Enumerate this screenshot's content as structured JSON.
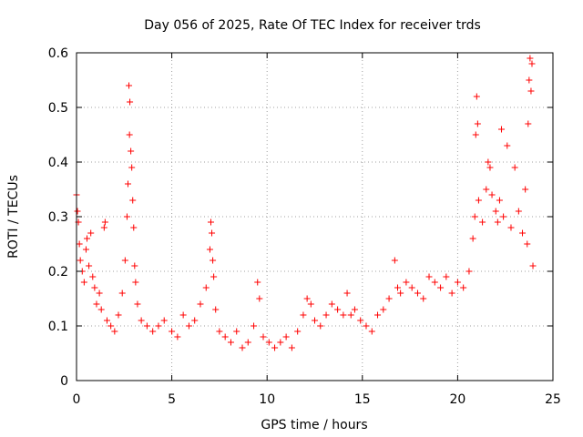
{
  "chart_data": {
    "type": "scatter",
    "title": "Day 056 of 2025, Rate Of TEC Index for receiver trds",
    "xlabel": "GPS time / hours",
    "ylabel": "ROTI / TECUs",
    "xlim": [
      0,
      25
    ],
    "ylim": [
      0,
      0.6
    ],
    "x_ticks": [
      "0",
      "5",
      "10",
      "15",
      "20",
      "25"
    ],
    "y_ticks": [
      "0",
      "0.1",
      "0.2",
      "0.3",
      "0.4",
      "0.5",
      "0.6"
    ],
    "grid": true,
    "marker": "+",
    "color": "#ff0000",
    "series": [
      {
        "points": [
          [
            0.0,
            0.34
          ],
          [
            0.05,
            0.31
          ],
          [
            0.1,
            0.29
          ],
          [
            0.15,
            0.25
          ],
          [
            0.2,
            0.22
          ],
          [
            0.3,
            0.2
          ],
          [
            0.4,
            0.18
          ],
          [
            0.5,
            0.24
          ],
          [
            0.55,
            0.26
          ],
          [
            0.65,
            0.21
          ],
          [
            0.75,
            0.27
          ],
          [
            0.85,
            0.19
          ],
          [
            0.95,
            0.17
          ],
          [
            1.05,
            0.14
          ],
          [
            1.2,
            0.16
          ],
          [
            1.3,
            0.13
          ],
          [
            1.45,
            0.28
          ],
          [
            1.5,
            0.29
          ],
          [
            1.6,
            0.11
          ],
          [
            1.8,
            0.1
          ],
          [
            2.0,
            0.09
          ],
          [
            2.2,
            0.12
          ],
          [
            2.4,
            0.16
          ],
          [
            2.55,
            0.22
          ],
          [
            2.65,
            0.3
          ],
          [
            2.7,
            0.36
          ],
          [
            2.75,
            0.54
          ],
          [
            2.78,
            0.45
          ],
          [
            2.8,
            0.51
          ],
          [
            2.85,
            0.42
          ],
          [
            2.9,
            0.39
          ],
          [
            2.95,
            0.33
          ],
          [
            3.0,
            0.28
          ],
          [
            3.05,
            0.21
          ],
          [
            3.1,
            0.18
          ],
          [
            3.2,
            0.14
          ],
          [
            3.4,
            0.11
          ],
          [
            3.7,
            0.1
          ],
          [
            4.0,
            0.09
          ],
          [
            4.3,
            0.1
          ],
          [
            4.6,
            0.11
          ],
          [
            5.0,
            0.09
          ],
          [
            5.3,
            0.08
          ],
          [
            5.6,
            0.12
          ],
          [
            5.9,
            0.1
          ],
          [
            6.2,
            0.11
          ],
          [
            6.5,
            0.14
          ],
          [
            6.8,
            0.17
          ],
          [
            7.0,
            0.24
          ],
          [
            7.05,
            0.29
          ],
          [
            7.1,
            0.27
          ],
          [
            7.15,
            0.22
          ],
          [
            7.2,
            0.19
          ],
          [
            7.3,
            0.13
          ],
          [
            7.5,
            0.09
          ],
          [
            7.8,
            0.08
          ],
          [
            8.1,
            0.07
          ],
          [
            8.4,
            0.09
          ],
          [
            8.7,
            0.06
          ],
          [
            9.0,
            0.07
          ],
          [
            9.3,
            0.1
          ],
          [
            9.5,
            0.18
          ],
          [
            9.6,
            0.15
          ],
          [
            9.8,
            0.08
          ],
          [
            10.1,
            0.07
          ],
          [
            10.4,
            0.06
          ],
          [
            10.7,
            0.07
          ],
          [
            11.0,
            0.08
          ],
          [
            11.3,
            0.06
          ],
          [
            11.6,
            0.09
          ],
          [
            11.9,
            0.12
          ],
          [
            12.1,
            0.15
          ],
          [
            12.3,
            0.14
          ],
          [
            12.5,
            0.11
          ],
          [
            12.8,
            0.1
          ],
          [
            13.1,
            0.12
          ],
          [
            13.4,
            0.14
          ],
          [
            13.7,
            0.13
          ],
          [
            14.0,
            0.12
          ],
          [
            14.2,
            0.16
          ],
          [
            14.4,
            0.12
          ],
          [
            14.6,
            0.13
          ],
          [
            14.9,
            0.11
          ],
          [
            15.2,
            0.1
          ],
          [
            15.5,
            0.09
          ],
          [
            15.8,
            0.12
          ],
          [
            16.1,
            0.13
          ],
          [
            16.4,
            0.15
          ],
          [
            16.7,
            0.22
          ],
          [
            16.85,
            0.17
          ],
          [
            17.0,
            0.16
          ],
          [
            17.3,
            0.18
          ],
          [
            17.6,
            0.17
          ],
          [
            17.9,
            0.16
          ],
          [
            18.2,
            0.15
          ],
          [
            18.5,
            0.19
          ],
          [
            18.8,
            0.18
          ],
          [
            19.1,
            0.17
          ],
          [
            19.4,
            0.19
          ],
          [
            19.7,
            0.16
          ],
          [
            20.0,
            0.18
          ],
          [
            20.3,
            0.17
          ],
          [
            20.6,
            0.2
          ],
          [
            20.8,
            0.26
          ],
          [
            20.9,
            0.3
          ],
          [
            20.95,
            0.45
          ],
          [
            21.0,
            0.52
          ],
          [
            21.05,
            0.47
          ],
          [
            21.1,
            0.33
          ],
          [
            21.3,
            0.29
          ],
          [
            21.5,
            0.35
          ],
          [
            21.6,
            0.4
          ],
          [
            21.7,
            0.39
          ],
          [
            21.8,
            0.34
          ],
          [
            22.0,
            0.31
          ],
          [
            22.1,
            0.29
          ],
          [
            22.2,
            0.33
          ],
          [
            22.3,
            0.46
          ],
          [
            22.4,
            0.3
          ],
          [
            22.6,
            0.43
          ],
          [
            22.8,
            0.28
          ],
          [
            23.0,
            0.39
          ],
          [
            23.2,
            0.31
          ],
          [
            23.4,
            0.27
          ],
          [
            23.55,
            0.35
          ],
          [
            23.65,
            0.25
          ],
          [
            23.7,
            0.47
          ],
          [
            23.75,
            0.55
          ],
          [
            23.8,
            0.59
          ],
          [
            23.85,
            0.53
          ],
          [
            23.9,
            0.58
          ],
          [
            23.95,
            0.21
          ]
        ]
      }
    ]
  }
}
